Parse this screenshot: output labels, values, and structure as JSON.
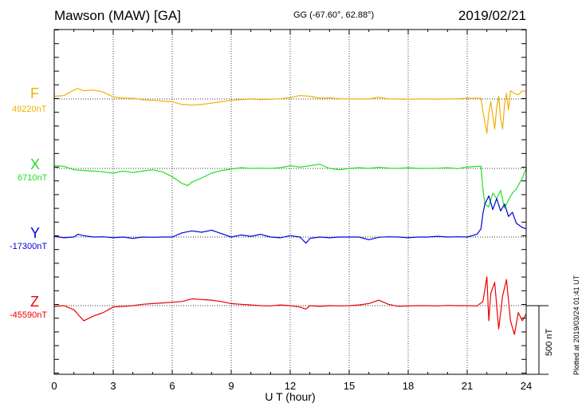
{
  "header": {
    "station": "Mawson (MAW)  [GA]",
    "coords": "GG (-67.60°,  62.88°)",
    "date": "2019/02/21"
  },
  "footer": {
    "plotted": "Plotted at 2019/03/24 01:41 UT"
  },
  "scale_bar_label": "500 nT",
  "chart_data": {
    "type": "line",
    "xlabel": "U T (hour)",
    "xlim": [
      0,
      24
    ],
    "xticks": [
      0,
      3,
      6,
      9,
      12,
      15,
      18,
      21,
      24
    ],
    "grid": true,
    "ylabel": "",
    "y_units": "nT",
    "series": [
      {
        "name": "F",
        "baseline_label": "49220nT",
        "baseline": 49220,
        "color": "#f0b000",
        "x": [
          0,
          0.5,
          1,
          1.2,
          1.5,
          2,
          2.5,
          3,
          3.5,
          4,
          4.5,
          5,
          5.5,
          6,
          6.5,
          7,
          7.5,
          8,
          8.5,
          9,
          9.5,
          10,
          10.5,
          11,
          11.5,
          12,
          12.5,
          13,
          13.5,
          14,
          14.5,
          15,
          15.5,
          16,
          16.5,
          17,
          17.5,
          18,
          18.5,
          19,
          19.5,
          20,
          20.5,
          21,
          21.4,
          21.7,
          21.8,
          21.9,
          22.0,
          22.1,
          22.2,
          22.3,
          22.4,
          22.5,
          22.6,
          22.7,
          22.8,
          22.9,
          23.0,
          23.1,
          23.2,
          23.4,
          23.6,
          23.8,
          24
        ],
        "values": [
          49240,
          49245,
          49285,
          49295,
          49280,
          49285,
          49270,
          49235,
          49225,
          49225,
          49215,
          49210,
          49205,
          49200,
          49180,
          49175,
          49180,
          49190,
          49200,
          49210,
          49215,
          49220,
          49215,
          49218,
          49222,
          49230,
          49245,
          49240,
          49225,
          49228,
          49222,
          49220,
          49220,
          49220,
          49232,
          49220,
          49220,
          49218,
          49220,
          49220,
          49218,
          49220,
          49222,
          49225,
          49225,
          49225,
          49130,
          49050,
          48970,
          49120,
          49200,
          49100,
          49000,
          49160,
          49240,
          49080,
          49000,
          49180,
          49260,
          49140,
          49280,
          49260,
          49250,
          49280,
          49275
        ]
      },
      {
        "name": "X",
        "baseline_label": "6710nT",
        "baseline": 6710,
        "color": "#22e022",
        "x": [
          0,
          0.5,
          1,
          1.5,
          2,
          2.5,
          3,
          3.5,
          4,
          4.5,
          5,
          5.5,
          6,
          6.5,
          6.8,
          7,
          7.5,
          8,
          8.5,
          9,
          9.5,
          10,
          10.5,
          11,
          11.5,
          12,
          12.5,
          13,
          13.5,
          14,
          14.5,
          15,
          15.5,
          16,
          16.5,
          17,
          17.5,
          18,
          18.5,
          19,
          19.5,
          20,
          20.5,
          21,
          21.5,
          21.7,
          21.8,
          21.9,
          22.1,
          22.3,
          22.5,
          22.7,
          22.9,
          23.1,
          23.3,
          23.5,
          23.8,
          24
        ],
        "values": [
          6730,
          6725,
          6700,
          6695,
          6690,
          6685,
          6675,
          6690,
          6680,
          6690,
          6700,
          6685,
          6650,
          6600,
          6585,
          6610,
          6640,
          6675,
          6695,
          6705,
          6715,
          6710,
          6712,
          6710,
          6715,
          6730,
          6720,
          6730,
          6740,
          6710,
          6700,
          6710,
          6715,
          6710,
          6718,
          6712,
          6710,
          6715,
          6710,
          6710,
          6712,
          6715,
          6708,
          6720,
          6725,
          6725,
          6560,
          6450,
          6430,
          6530,
          6490,
          6550,
          6420,
          6480,
          6530,
          6560,
          6640,
          6710
        ]
      },
      {
        "name": "Y",
        "baseline_label": "-17300nT",
        "baseline": -17300,
        "color": "#0000dd",
        "x": [
          0,
          0.5,
          1,
          1.2,
          1.5,
          2,
          2.5,
          3,
          3.5,
          4,
          4.5,
          5,
          5.5,
          6,
          6.5,
          7,
          7.5,
          8,
          8.5,
          9,
          9.5,
          10,
          10.5,
          11,
          11.5,
          12,
          12.5,
          12.8,
          13,
          13.5,
          14,
          14.5,
          15,
          15.5,
          16,
          16.5,
          17,
          17.5,
          18,
          18.5,
          19,
          19.5,
          20,
          20.5,
          21,
          21.5,
          21.7,
          21.8,
          21.9,
          22.1,
          22.3,
          22.5,
          22.7,
          22.9,
          23.1,
          23.3,
          23.5,
          23.8,
          24
        ],
        "values": [
          -17295,
          -17305,
          -17300,
          -17280,
          -17290,
          -17300,
          -17298,
          -17305,
          -17300,
          -17310,
          -17300,
          -17302,
          -17300,
          -17300,
          -17270,
          -17255,
          -17265,
          -17250,
          -17275,
          -17300,
          -17285,
          -17295,
          -17280,
          -17300,
          -17305,
          -17290,
          -17300,
          -17345,
          -17310,
          -17300,
          -17305,
          -17300,
          -17300,
          -17300,
          -17320,
          -17302,
          -17298,
          -17300,
          -17305,
          -17300,
          -17300,
          -17295,
          -17300,
          -17298,
          -17300,
          -17280,
          -17240,
          -17130,
          -17060,
          -17000,
          -17100,
          -17020,
          -17110,
          -17060,
          -17150,
          -17120,
          -17200,
          -17230,
          -17240
        ]
      },
      {
        "name": "Z",
        "baseline_label": "-45590nT",
        "baseline": -45590,
        "color": "#ee0000",
        "x": [
          0,
          0.5,
          1,
          1.5,
          2,
          2.5,
          3,
          3.5,
          4,
          4.5,
          5,
          5.5,
          6,
          6.5,
          7,
          7.5,
          8,
          8.5,
          9,
          9.5,
          10,
          10.5,
          11,
          11.5,
          12,
          12.5,
          12.8,
          13,
          13.5,
          14,
          14.5,
          15,
          15.5,
          16,
          16.5,
          17,
          17.5,
          18,
          18.5,
          19,
          19.5,
          20,
          20.5,
          21,
          21.5,
          21.8,
          22.0,
          22.1,
          22.2,
          22.4,
          22.6,
          22.8,
          23.0,
          23.2,
          23.4,
          23.6,
          23.8,
          24
        ],
        "values": [
          -45595,
          -45590,
          -45620,
          -45700,
          -45665,
          -45640,
          -45600,
          -45595,
          -45590,
          -45580,
          -45575,
          -45570,
          -45565,
          -45560,
          -45540,
          -45545,
          -45550,
          -45560,
          -45575,
          -45580,
          -45585,
          -45590,
          -45592,
          -45585,
          -45590,
          -45600,
          -45615,
          -45590,
          -45595,
          -45590,
          -45592,
          -45590,
          -45585,
          -45575,
          -45550,
          -45580,
          -45595,
          -45592,
          -45590,
          -45590,
          -45592,
          -45588,
          -45590,
          -45590,
          -45592,
          -45560,
          -45380,
          -45700,
          -45500,
          -45420,
          -45760,
          -45520,
          -45400,
          -45700,
          -45800,
          -45640,
          -45700,
          -45650
        ]
      }
    ]
  }
}
